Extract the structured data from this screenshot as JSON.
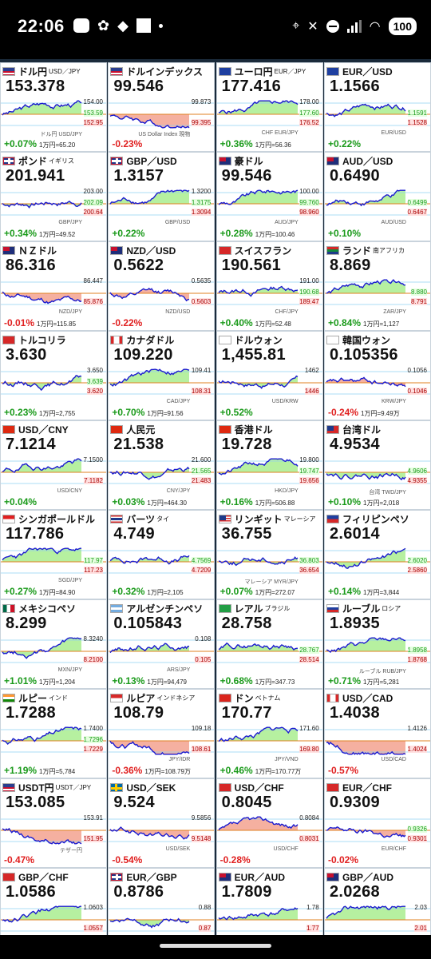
{
  "status": {
    "time": "22:06",
    "battery": "100"
  },
  "tiles": [
    {
      "name": "ドル円",
      "sub": "USD／JPY",
      "price": "153.378",
      "hi": "154.00",
      "mid": "153.59",
      "lo": "152.95",
      "change": "+0.07%",
      "yen": "1万円=65.20",
      "dir": "up",
      "flag": "us",
      "caption": "ドル円 USD/JPY"
    },
    {
      "name": "ドルインデックス",
      "sub": "",
      "price": "99.546",
      "hi": "99.873",
      "mid": "",
      "lo": "99.395",
      "change": "-0.23%",
      "yen": "",
      "dir": "down",
      "flag": "us",
      "caption": "US Dollar Index 現物"
    },
    {
      "name": "ユーロ円",
      "sub": "EUR／JPY",
      "price": "177.416",
      "hi": "178.00",
      "mid": "177.60",
      "lo": "176.52",
      "change": "+0.36%",
      "yen": "1万円=56.36",
      "dir": "up",
      "flag": "eu",
      "caption": "CHF EUR/JPY"
    },
    {
      "name": "EUR／USD",
      "sub": "",
      "price": "1.1566",
      "hi": "",
      "mid": "1.1591",
      "lo": "1.1528",
      "change": "+0.22%",
      "yen": "",
      "dir": "up",
      "flag": "eu",
      "caption": "EUR/USD"
    },
    {
      "name": "ポンド",
      "sub": "イギリス",
      "price": "201.941",
      "hi": "203.00",
      "mid": "202.09",
      "lo": "200.64",
      "change": "+0.34%",
      "yen": "1万円=49.52",
      "dir": "up",
      "flag": "gb",
      "caption": "GBP/JPY"
    },
    {
      "name": "GBP／USD",
      "sub": "",
      "price": "1.3157",
      "hi": "1.3200",
      "mid": "1.3175",
      "lo": "1.3094",
      "change": "+0.22%",
      "yen": "",
      "dir": "up",
      "flag": "gb",
      "caption": "GBP/USD"
    },
    {
      "name": "豪ドル",
      "sub": "",
      "price": "99.546",
      "hi": "100.00",
      "mid": "99.760",
      "lo": "98.960",
      "change": "+0.28%",
      "yen": "1万円=100.46",
      "dir": "up",
      "flag": "au",
      "caption": "AUD/JPY"
    },
    {
      "name": "AUD／USD",
      "sub": "",
      "price": "0.6490",
      "hi": "",
      "mid": "0.6499",
      "lo": "0.6467",
      "change": "+0.10%",
      "yen": "",
      "dir": "up",
      "flag": "au",
      "caption": "AUD/USD"
    },
    {
      "name": "ＮＺドル",
      "sub": "",
      "price": "86.316",
      "hi": "86.447",
      "mid": "",
      "lo": "85.876",
      "change": "-0.01%",
      "yen": "1万円=115.85",
      "dir": "down",
      "flag": "nz",
      "caption": "NZD/JPY"
    },
    {
      "name": "NZD／USD",
      "sub": "",
      "price": "0.5622",
      "hi": "0.5635",
      "mid": "",
      "lo": "0.5603",
      "change": "-0.22%",
      "yen": "",
      "dir": "down",
      "flag": "nz",
      "caption": "NZD/USD"
    },
    {
      "name": "スイスフラン",
      "sub": "",
      "price": "190.561",
      "hi": "191.00",
      "mid": "190.68",
      "lo": "189.47",
      "change": "+0.40%",
      "yen": "1万円=52.48",
      "dir": "up",
      "flag": "ch",
      "caption": "CHF/JPY"
    },
    {
      "name": "ランド",
      "sub": "南アフリカ",
      "price": "8.869",
      "hi": "",
      "mid": "8.880",
      "lo": "8.791",
      "change": "+0.84%",
      "yen": "1万円=1,127",
      "dir": "up",
      "flag": "za",
      "caption": "ZAR/JPY"
    },
    {
      "name": "トルコリラ",
      "sub": "",
      "price": "3.630",
      "hi": "3.650",
      "mid": "3.639",
      "lo": "3.620",
      "change": "+0.23%",
      "yen": "1万円=2,755",
      "dir": "up",
      "flag": "tr",
      "caption": ""
    },
    {
      "name": "カナダドル",
      "sub": "",
      "price": "109.220",
      "hi": "109.41",
      "mid": "",
      "lo": "108.31",
      "change": "+0.70%",
      "yen": "1万円=91.56",
      "dir": "up",
      "flag": "ca",
      "caption": "CAD/JPY"
    },
    {
      "name": "ドルウォン",
      "sub": "",
      "price": "1,455.81",
      "hi": "1462",
      "mid": "",
      "lo": "1446",
      "change": "+0.52%",
      "yen": "",
      "dir": "up",
      "flag": "kr",
      "caption": "USD/KRW"
    },
    {
      "name": "韓国ウォン",
      "sub": "",
      "price": "0.105356",
      "hi": "0.1056",
      "mid": "",
      "lo": "0.1046",
      "change": "-0.24%",
      "yen": "1万円=9.49万",
      "dir": "down",
      "flag": "kr",
      "caption": "KRW/JPY"
    },
    {
      "name": "USD／CNY",
      "sub": "",
      "price": "7.1214",
      "hi": "7.1500",
      "mid": "",
      "lo": "7.1182",
      "change": "+0.04%",
      "yen": "",
      "dir": "up",
      "flag": "cn",
      "caption": "USD/CNY"
    },
    {
      "name": "人民元",
      "sub": "",
      "price": "21.538",
      "hi": "21.600",
      "mid": "21.565",
      "lo": "21.483",
      "change": "+0.03%",
      "yen": "1万円=464.30",
      "dir": "up",
      "flag": "cn",
      "caption": "CNY/JPY"
    },
    {
      "name": "香港ドル",
      "sub": "",
      "price": "19.728",
      "hi": "19.800",
      "mid": "19.747",
      "lo": "19.656",
      "change": "+0.16%",
      "yen": "1万円=506.88",
      "dir": "up",
      "flag": "hk",
      "caption": "HKD/JPY"
    },
    {
      "name": "台湾ドル",
      "sub": "",
      "price": "4.9534",
      "hi": "",
      "mid": "4.9606",
      "lo": "4.9355",
      "change": "+0.10%",
      "yen": "1万円=2,018",
      "dir": "up",
      "flag": "tw",
      "caption": "台湾 TWD/JPY"
    },
    {
      "name": "シンガポールドル",
      "sub": "",
      "price": "117.786",
      "hi": "",
      "mid": "117.97",
      "lo": "117.23",
      "change": "+0.27%",
      "yen": "1万円=84.90",
      "dir": "up",
      "flag": "sg",
      "caption": "SGD/JPY"
    },
    {
      "name": "バーツ",
      "sub": "タイ",
      "price": "4.749",
      "hi": "",
      "mid": "4.7569",
      "lo": "4.7209",
      "change": "+0.32%",
      "yen": "1万円=2,105",
      "dir": "up",
      "flag": "th",
      "caption": ""
    },
    {
      "name": "リンギット",
      "sub": "マレーシア",
      "price": "36.755",
      "hi": "",
      "mid": "36.803",
      "lo": "36.654",
      "change": "+0.07%",
      "yen": "1万円=272.07",
      "dir": "up",
      "flag": "my",
      "caption": "マレーシア MYR/JPY"
    },
    {
      "name": "フィリピンペソ",
      "sub": "",
      "price": "2.6014",
      "hi": "",
      "mid": "2.6020",
      "lo": "2.5860",
      "change": "+0.14%",
      "yen": "1万円=3,844",
      "dir": "up",
      "flag": "ph",
      "caption": ""
    },
    {
      "name": "メキシコペソ",
      "sub": "",
      "price": "8.299",
      "hi": "8.3240",
      "mid": "",
      "lo": "8.2100",
      "change": "+1.01%",
      "yen": "1万円=1,204",
      "dir": "up",
      "flag": "mx",
      "caption": "MXN/JPY"
    },
    {
      "name": "アルゼンチンペソ",
      "sub": "",
      "price": "0.105843",
      "hi": "0.108",
      "mid": "",
      "lo": "0.105",
      "change": "+0.13%",
      "yen": "1万円=94,479",
      "dir": "up",
      "flag": "ar",
      "caption": "ARS/JPY"
    },
    {
      "name": "レアル",
      "sub": "ブラジル",
      "price": "28.758",
      "hi": "",
      "mid": "28.767",
      "lo": "28.514",
      "change": "+0.68%",
      "yen": "1万円=347.73",
      "dir": "up",
      "flag": "br",
      "caption": ""
    },
    {
      "name": "ルーブル",
      "sub": "ロシア",
      "price": "1.8935",
      "hi": "",
      "mid": "1.8958",
      "lo": "1.8768",
      "change": "+0.71%",
      "yen": "1万円=5,281",
      "dir": "up",
      "flag": "ru",
      "caption": "ルーブル RUB/JPY"
    },
    {
      "name": "ルピー",
      "sub": "インド",
      "price": "1.7288",
      "hi": "1.7400",
      "mid": "1.7296",
      "lo": "1.7229",
      "change": "+1.19%",
      "yen": "1万円=5,784",
      "dir": "up",
      "flag": "in",
      "caption": ""
    },
    {
      "name": "ルピア",
      "sub": "インドネシア",
      "price": "108.79",
      "hi": "109.18",
      "mid": "",
      "lo": "108.61",
      "change": "-0.36%",
      "yen": "1万円=108.79万",
      "dir": "down",
      "flag": "id",
      "caption": "JPY/IDR"
    },
    {
      "name": "ドン",
      "sub": "ベトナム",
      "price": "170.77",
      "hi": "171.60",
      "mid": "",
      "lo": "169.80",
      "change": "+0.46%",
      "yen": "1万円=170.77万",
      "dir": "up",
      "flag": "vn",
      "caption": "JPY/VND"
    },
    {
      "name": "USD／CAD",
      "sub": "",
      "price": "1.4038",
      "hi": "1.4126",
      "mid": "",
      "lo": "1.4024",
      "change": "-0.57%",
      "yen": "",
      "dir": "down",
      "flag": "ca",
      "caption": "USD/CAD"
    },
    {
      "name": "USDT円",
      "sub": "USDT／JPY",
      "price": "153.085",
      "hi": "153.91",
      "mid": "",
      "lo": "151.95",
      "change": "-0.47%",
      "yen": "",
      "dir": "down",
      "flag": "us",
      "caption": "テザー円"
    },
    {
      "name": "USD／SEK",
      "sub": "",
      "price": "9.524",
      "hi": "9.5856",
      "mid": "",
      "lo": "9.5148",
      "change": "-0.54%",
      "yen": "",
      "dir": "down",
      "flag": "se",
      "caption": "USD/SEK"
    },
    {
      "name": "USD／CHF",
      "sub": "",
      "price": "0.8045",
      "hi": "0.8084",
      "mid": "",
      "lo": "0.8031",
      "change": "-0.28%",
      "yen": "",
      "dir": "down",
      "flag": "ch",
      "caption": "USD/CHF"
    },
    {
      "name": "EUR／CHF",
      "sub": "",
      "price": "0.9309",
      "hi": "",
      "mid": "0.9326",
      "lo": "0.9301",
      "change": "-0.02%",
      "yen": "",
      "dir": "down",
      "flag": "ch",
      "caption": "EUR/CHF"
    },
    {
      "name": "GBP／CHF",
      "sub": "",
      "price": "1.0586",
      "hi": "1.0603",
      "mid": "",
      "lo": "1.0557",
      "change": "",
      "yen": "",
      "dir": "up",
      "flag": "ch",
      "caption": "GBP/CHF"
    },
    {
      "name": "EUR／GBP",
      "sub": "",
      "price": "0.8786",
      "hi": "0.88",
      "mid": "",
      "lo": "0.87",
      "change": "",
      "yen": "",
      "dir": "up",
      "flag": "gb",
      "caption": "EUR/GBP"
    },
    {
      "name": "EUR／AUD",
      "sub": "",
      "price": "1.7809",
      "hi": "1.78",
      "mid": "",
      "lo": "1.77",
      "change": "",
      "yen": "",
      "dir": "up",
      "flag": "au",
      "caption": "EUR/AUD"
    },
    {
      "name": "GBP／AUD",
      "sub": "",
      "price": "2.0268",
      "hi": "2.03",
      "mid": "",
      "lo": "2.01",
      "change": "",
      "yen": "",
      "dir": "up",
      "flag": "au",
      "caption": "GBP/AUD"
    }
  ],
  "colors": {
    "up": "#1a9a1a",
    "down": "#e02020",
    "upfill": "#b6f0a0",
    "downfill": "#f5b0a0",
    "line": "#1a1ad0",
    "ref": "#e08020"
  }
}
